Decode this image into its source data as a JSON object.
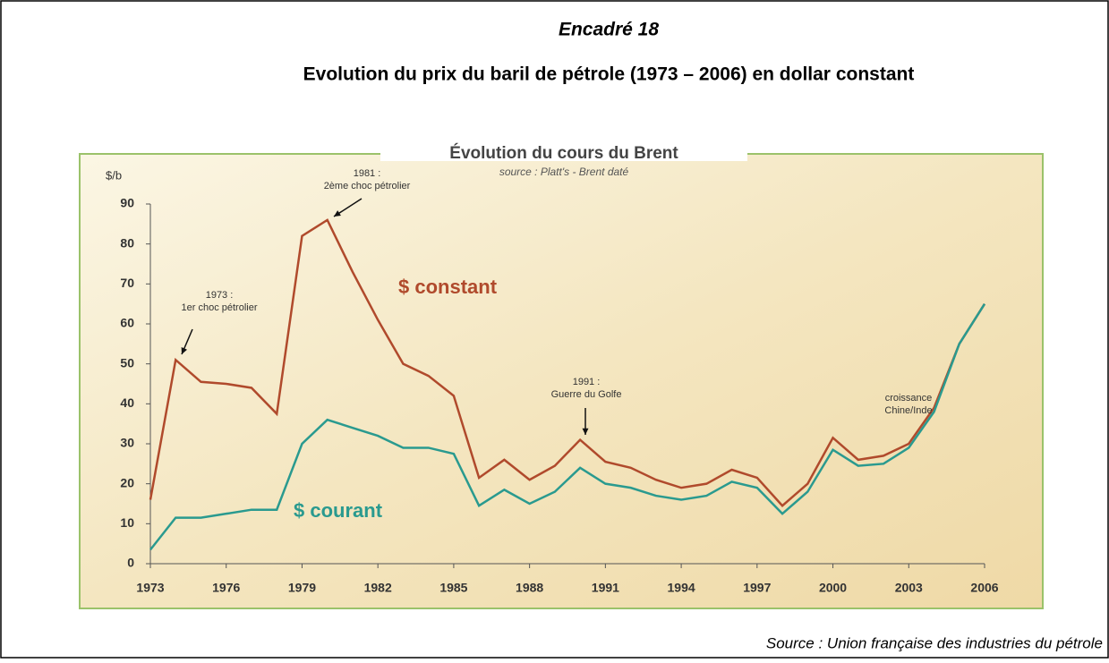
{
  "box_label": "Encadré 18",
  "heading": "Evolution du prix du baril de pétrole (1973 – 2006) en dollar constant",
  "source_note": "Source : Union française des industries du pétrole",
  "chart_data": {
    "type": "line",
    "title": "Évolution du cours du Brent",
    "subtitle": "source : Platt's - Brent daté",
    "y_label": "$/b",
    "x": [
      1973,
      1974,
      1975,
      1976,
      1977,
      1978,
      1979,
      1980,
      1981,
      1982,
      1983,
      1984,
      1985,
      1986,
      1987,
      1988,
      1989,
      1990,
      1991,
      1992,
      1993,
      1994,
      1995,
      1996,
      1997,
      1998,
      1999,
      2000,
      2001,
      2002,
      2003,
      2004,
      2005,
      2006
    ],
    "series": [
      {
        "name": "$ constant",
        "color": "#b04a2c",
        "values": [
          16,
          51,
          45.5,
          45,
          44,
          37.5,
          82,
          86,
          73,
          61,
          50,
          47,
          42,
          21.5,
          26,
          21,
          24.5,
          31,
          25.5,
          24,
          21,
          19,
          20,
          23.5,
          21.5,
          14.5,
          20,
          31.5,
          26,
          27,
          30,
          39,
          55,
          65
        ]
      },
      {
        "name": "$ courant",
        "color": "#2a9a8f",
        "values": [
          3.5,
          11.5,
          11.5,
          12.5,
          13.5,
          13.5,
          30,
          36,
          34,
          32,
          29,
          29,
          27.5,
          14.5,
          18.5,
          15,
          18,
          24,
          20,
          19,
          17,
          16,
          17,
          20.5,
          19,
          12.5,
          18,
          28.5,
          24.5,
          25,
          29,
          38,
          55,
          65
        ]
      }
    ],
    "xlim": [
      1973,
      2006
    ],
    "xticks": [
      1973,
      1976,
      1979,
      1982,
      1985,
      1988,
      1991,
      1994,
      1997,
      2000,
      2003,
      2006
    ],
    "ylim": [
      0,
      90
    ],
    "yticks": [
      0,
      10,
      20,
      30,
      40,
      50,
      60,
      70,
      80,
      90
    ],
    "annotations": [
      {
        "lines": [
          "1973 :",
          "1er choc pétrolier"
        ]
      },
      {
        "lines": [
          "1981 :",
          "2ème choc pétrolier"
        ]
      },
      {
        "lines": [
          "1991 :",
          "Guerre du Golfe"
        ]
      },
      {
        "lines": [
          "croissance",
          "Chine/Inde"
        ]
      }
    ]
  }
}
